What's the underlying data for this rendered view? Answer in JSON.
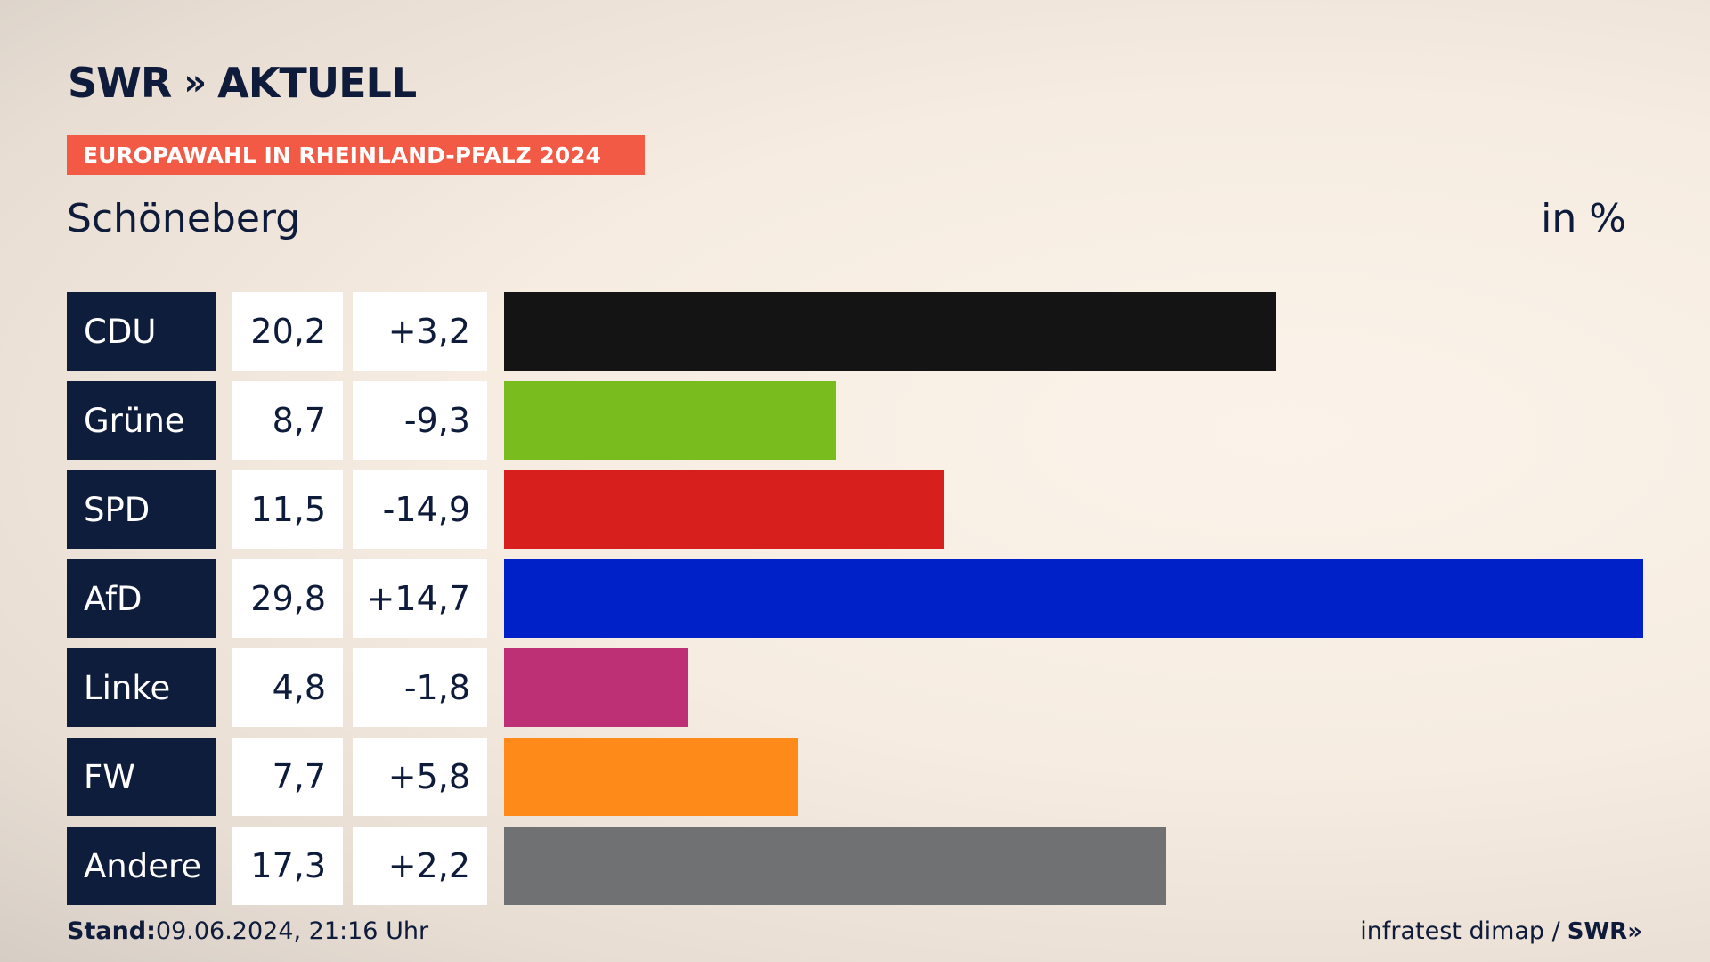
{
  "logo": {
    "brand": "SWR",
    "chevrons": "»",
    "name": "AKTUELL"
  },
  "banner": {
    "text": "EUROPAWAHL IN RHEINLAND-PFALZ 2024"
  },
  "subtitle": "Schöneberg",
  "unit": "in %",
  "footer": {
    "stand_label": "Stand:",
    "stand_value": "09.06.2024, 21:16 Uhr",
    "source": "infratest dimap /",
    "source_logo": "SWR»"
  },
  "chart_data": {
    "type": "bar",
    "orientation": "horizontal",
    "categories": [
      "CDU",
      "Grüne",
      "SPD",
      "AfD",
      "Linke",
      "FW",
      "Andere"
    ],
    "values": [
      20.2,
      8.7,
      11.5,
      29.8,
      4.8,
      7.7,
      17.3
    ],
    "value_labels": [
      "20,2",
      "8,7",
      "11,5",
      "29,8",
      "4,8",
      "7,7",
      "17,3"
    ],
    "change_labels": [
      "+3,2",
      "-9,3",
      "-14,9",
      "+14,7",
      "-1,8",
      "+5,8",
      "+2,2"
    ],
    "changes": [
      3.2,
      -9.3,
      -14.9,
      14.7,
      -1.8,
      5.8,
      2.2
    ],
    "colors": [
      "#141414",
      "#78bc1e",
      "#d71f1d",
      "#0021c8",
      "#bd3075",
      "#fe8a19",
      "#707173"
    ],
    "title": "Schöneberg",
    "ylabel": "in %",
    "xlim": [
      0,
      29.8
    ],
    "grid": false
  }
}
